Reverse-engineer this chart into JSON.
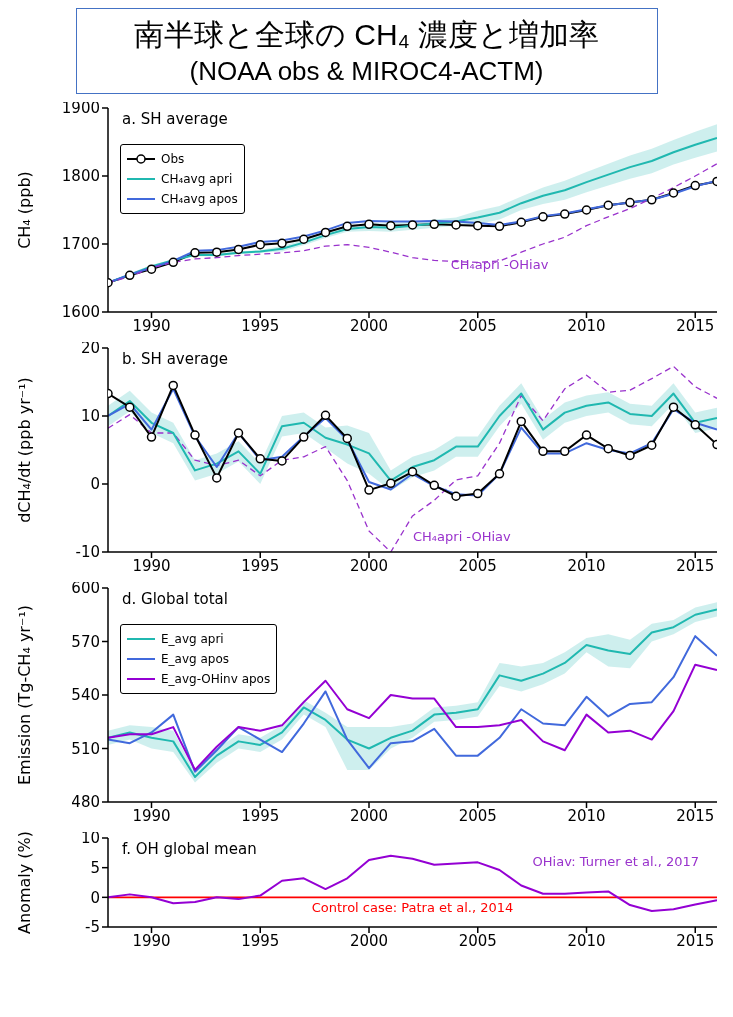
{
  "chart_data": [
    {
      "type": "line",
      "title": "南半球と全球の CH₄ 濃度と増加率",
      "subtitle": "(NOAA obs & MIROC4-ACTM)",
      "ylabel": "CH₄ (ppb)",
      "annotations": [
        "a. SH average",
        {
          "text": "CH₄apri -OHiav",
          "x": 2006,
          "y": 1668
        }
      ],
      "x": [
        1988,
        1989,
        1990,
        1991,
        1992,
        1993,
        1994,
        1995,
        1996,
        1997,
        1998,
        1999,
        2000,
        2001,
        2002,
        2003,
        2004,
        2005,
        2006,
        2007,
        2008,
        2009,
        2010,
        2011,
        2012,
        2013,
        2014,
        2015,
        2016
      ],
      "series": [
        {
          "name": "Obs",
          "color": "#000000",
          "marker": "circle",
          "values": [
            1643,
            1654,
            1663,
            1673,
            1687,
            1688,
            1692,
            1699,
            1701,
            1707,
            1717,
            1726,
            1729,
            1727,
            1728,
            1729,
            1728,
            1727,
            1726,
            1732,
            1740,
            1744,
            1750,
            1757,
            1761,
            1765,
            1775,
            1786,
            1792
          ]
        },
        {
          "name": "CH₄avg apri",
          "color": "#20b8b0",
          "values": [
            1643,
            1655,
            1667,
            1676,
            1684,
            1684,
            1687,
            1689,
            1693,
            1702,
            1713,
            1722,
            1725,
            1724,
            1727,
            1730,
            1733,
            1739,
            1746,
            1760,
            1771,
            1779,
            1791,
            1802,
            1813,
            1822,
            1835,
            1846,
            1856
          ],
          "lower": [
            1641,
            1653,
            1665,
            1674,
            1682,
            1682,
            1685,
            1687,
            1689,
            1698,
            1709,
            1718,
            1719,
            1718,
            1721,
            1724,
            1727,
            1729,
            1736,
            1750,
            1759,
            1765,
            1776,
            1786,
            1796,
            1804,
            1817,
            1827,
            1836
          ],
          "upper": [
            1645,
            1657,
            1669,
            1678,
            1686,
            1686,
            1689,
            1691,
            1697,
            1706,
            1717,
            1726,
            1731,
            1730,
            1733,
            1736,
            1739,
            1749,
            1756,
            1770,
            1783,
            1793,
            1806,
            1818,
            1830,
            1840,
            1853,
            1865,
            1876
          ]
        },
        {
          "name": "CH₄avg apos",
          "color": "#4169dc",
          "values": [
            1643,
            1655,
            1665,
            1675,
            1690,
            1691,
            1696,
            1703,
            1705,
            1711,
            1720,
            1731,
            1734,
            1733,
            1733,
            1734,
            1733,
            1731,
            1728,
            1733,
            1741,
            1745,
            1751,
            1757,
            1761,
            1765,
            1774,
            1785,
            1793
          ]
        },
        {
          "color": "#9932cc",
          "line_style": "dashed",
          "values": [
            1643,
            1652,
            1665,
            1673,
            1678,
            1680,
            1683,
            1685,
            1687,
            1690,
            1697,
            1699,
            1695,
            1688,
            1680,
            1676,
            1674,
            1673,
            1675,
            1688,
            1700,
            1710,
            1727,
            1740,
            1752,
            1767,
            1783,
            1800,
            1818
          ]
        }
      ],
      "xlim": [
        1988,
        2016
      ],
      "xticks": [
        1990,
        1995,
        2000,
        2005,
        2010,
        2015
      ],
      "ylim": [
        1600,
        1900
      ],
      "yticks": [
        1600,
        1700,
        1800,
        1900
      ],
      "grid": false,
      "legend": "top left",
      "marker": "none"
    },
    {
      "type": "line",
      "title": "b. SH average",
      "ylabel": "dCH₄/dt (ppb yr⁻¹)",
      "annotations": [
        "CH₄apri -OHiav"
      ],
      "x": [
        1988,
        1989,
        1990,
        1991,
        1992,
        1993,
        1994,
        1995,
        1996,
        1997,
        1998,
        1999,
        2000,
        2001,
        2002,
        2003,
        2004,
        2005,
        2006,
        2007,
        2008,
        2009,
        2010,
        2011,
        2012,
        2013,
        2014,
        2015,
        2016
      ],
      "series": [
        {
          "color": "#9932cc",
          "line_style": "dashed",
          "values": [
            8.2,
            10.2,
            7.5,
            7.5,
            3.5,
            2.7,
            3.5,
            1.2,
            3.5,
            4.0,
            5.5,
            0.5,
            -6.9,
            -10,
            -4.7,
            -2.4,
            0.6,
            1.2,
            6.0,
            13.0,
            9.3,
            14.0,
            16.0,
            13.5,
            13.8,
            15.5,
            17.3,
            14.3,
            12.6
          ]
        },
        {
          "color": "#20b8b0",
          "values": [
            10.0,
            12.2,
            9.0,
            7.5,
            2.0,
            3.0,
            4.8,
            1.5,
            8.5,
            9.0,
            6.8,
            5.8,
            4.5,
            0.5,
            2.5,
            3.5,
            5.5,
            5.5,
            10.0,
            13.3,
            8.0,
            10.5,
            11.5,
            12.0,
            10.3,
            10.0,
            13.3,
            9.0,
            9.7
          ],
          "lower": [
            8.5,
            10.7,
            7.5,
            6.0,
            0.5,
            1.5,
            3.3,
            0.0,
            7.0,
            7.5,
            5.3,
            3.0,
            1.5,
            -1.0,
            1.0,
            2.0,
            4.0,
            4.0,
            8.5,
            11.8,
            6.5,
            9.0,
            10.0,
            10.5,
            8.8,
            8.5,
            11.8,
            7.5,
            8.2
          ],
          "upper": [
            11.5,
            13.7,
            10.5,
            9.0,
            3.5,
            4.5,
            6.3,
            3.0,
            10.0,
            10.5,
            8.3,
            8.6,
            7.5,
            2.0,
            4.0,
            5.0,
            7.0,
            7.0,
            11.5,
            14.8,
            9.5,
            12.0,
            13.0,
            13.5,
            11.8,
            11.5,
            14.8,
            10.5,
            11.2
          ]
        },
        {
          "color": "#4169dc",
          "values": [
            10.0,
            11.8,
            8.0,
            14.0,
            7.0,
            2.5,
            7.5,
            3.5,
            4.0,
            7.0,
            9.7,
            6.5,
            0.3,
            -0.8,
            1.5,
            -0.3,
            -1.5,
            -1.7,
            1.5,
            8.3,
            4.5,
            4.5,
            6.0,
            5.0,
            4.5,
            6.0,
            11.0,
            9.0,
            8.0
          ]
        },
        {
          "color": "#000000",
          "marker": "circle",
          "values": [
            13.3,
            11.3,
            6.9,
            14.5,
            7.2,
            0.9,
            7.5,
            3.7,
            3.4,
            6.9,
            10.1,
            6.7,
            -0.9,
            0.1,
            1.8,
            -0.2,
            -1.8,
            -1.4,
            1.5,
            9.2,
            4.8,
            4.8,
            7.2,
            5.2,
            4.2,
            5.7,
            11.3,
            8.7,
            5.8
          ]
        }
      ],
      "xlim": [
        1988,
        2016
      ],
      "xticks": [
        1990,
        1995,
        2000,
        2005,
        2010,
        2015
      ],
      "ylim": [
        -10,
        20
      ],
      "yticks": [
        -10,
        0,
        10,
        20
      ],
      "grid": false,
      "legend": false,
      "marker": "none"
    },
    {
      "type": "line",
      "title": "d. Global total",
      "ylabel": "Emission (Tg-CH₄ yr⁻¹)",
      "x": [
        1988,
        1989,
        1990,
        1991,
        1992,
        1993,
        1994,
        1995,
        1996,
        1997,
        1998,
        1999,
        2000,
        2001,
        2002,
        2003,
        2004,
        2005,
        2006,
        2007,
        2008,
        2009,
        2010,
        2011,
        2012,
        2013,
        2014,
        2015,
        2016
      ],
      "series": [
        {
          "name": "E_avg apri",
          "color": "#20b8b0",
          "values": [
            516,
            519,
            516,
            514,
            494,
            506,
            514,
            512,
            519,
            533,
            526,
            515,
            510,
            516,
            520,
            529,
            530,
            532,
            551,
            548,
            552,
            558,
            568,
            565,
            563,
            575,
            578,
            585,
            588
          ],
          "lower": [
            512,
            515,
            510,
            508,
            491,
            502,
            510,
            508,
            515,
            529,
            522,
            498,
            498,
            510,
            516,
            525,
            526,
            528,
            545,
            542,
            546,
            552,
            564,
            556,
            555,
            570,
            574,
            581,
            584
          ],
          "upper": [
            520,
            523,
            522,
            520,
            497,
            510,
            518,
            516,
            523,
            537,
            530,
            522,
            522,
            522,
            524,
            533,
            534,
            536,
            558,
            556,
            558,
            564,
            572,
            574,
            571,
            580,
            582,
            589,
            592
          ]
        },
        {
          "name": "E_avg apos",
          "color": "#4169dc",
          "values": [
            515,
            513,
            519,
            529,
            497,
            509,
            522,
            515,
            508,
            524,
            542,
            515,
            499,
            513,
            514,
            521,
            506,
            506,
            516,
            532,
            524,
            523,
            539,
            528,
            535,
            536,
            550,
            573,
            562
          ]
        },
        {
          "name": "E_avg-OHinv apos",
          "color": "#9400d3",
          "values": [
            516,
            518,
            518,
            522,
            498,
            511,
            522,
            520,
            523,
            536,
            548,
            532,
            527,
            540,
            538,
            538,
            522,
            522,
            523,
            526,
            514,
            509,
            529,
            519,
            520,
            515,
            531,
            557,
            554
          ]
        }
      ],
      "xlim": [
        1988,
        2016
      ],
      "xticks": [
        1990,
        1995,
        2000,
        2005,
        2010,
        2015
      ],
      "ylim": [
        480,
        600
      ],
      "yticks": [
        480,
        510,
        540,
        570,
        600
      ],
      "grid": false,
      "legend": "top left",
      "marker": "none"
    },
    {
      "type": "line",
      "title": "f. OH global mean",
      "ylabel": "Anomaly (%)",
      "annotations": [
        "OHiav: Turner et al., 2017"
      ],
      "x": [
        1988,
        1989,
        1990,
        1991,
        1992,
        1993,
        1994,
        1995,
        1996,
        1997,
        1998,
        1999,
        2000,
        2001,
        2002,
        2003,
        2004,
        2005,
        2006,
        2007,
        2008,
        2009,
        2010,
        2011,
        2012,
        2013,
        2014,
        2015,
        2016
      ],
      "series": [
        {
          "color": "#9400d3",
          "values": [
            0,
            0.5,
            0,
            -1.0,
            -0.8,
            0,
            -0.3,
            0.3,
            2.8,
            3.2,
            1.4,
            3.2,
            6.3,
            7.0,
            6.5,
            5.5,
            5.7,
            5.9,
            4.6,
            2.0,
            0.6,
            0.6,
            0.8,
            1.0,
            -1.3,
            -2.3,
            -2.0,
            -1.2,
            -0.5
          ]
        }
      ],
      "ref_lines": [
        {
          "axis": "y",
          "value": 0,
          "label": "Control case: Patra et al., 2014",
          "color": "#ff0000"
        }
      ],
      "xlim": [
        1988,
        2016
      ],
      "xticks": [
        1990,
        1995,
        2000,
        2005,
        2010,
        2015
      ],
      "ylim": [
        -5,
        10
      ],
      "yticks": [
        -5,
        0,
        5,
        10
      ],
      "grid": false,
      "legend": false,
      "marker": "none"
    }
  ]
}
